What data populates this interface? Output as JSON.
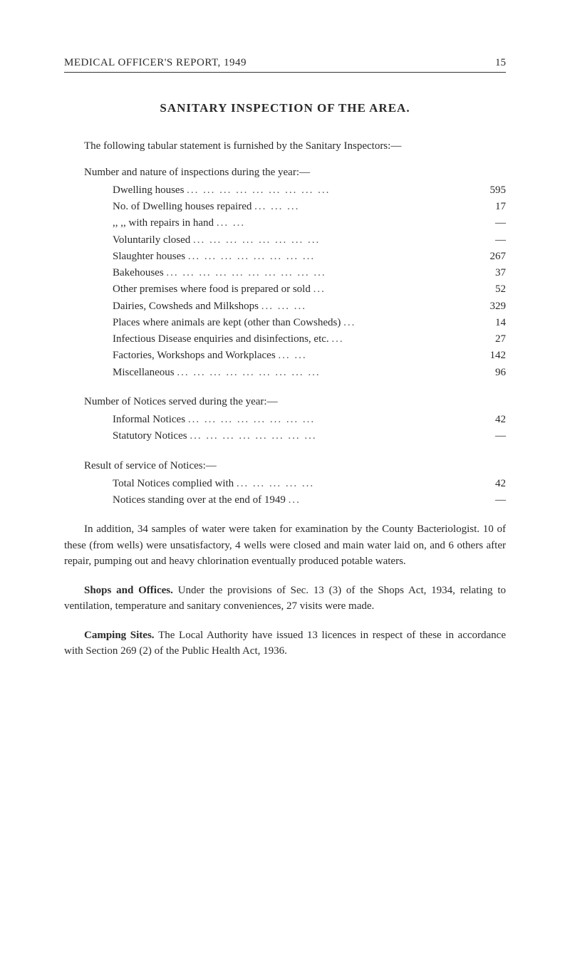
{
  "header": {
    "title": "MEDICAL OFFICER'S REPORT, 1949",
    "page_number": "15"
  },
  "main_title": "SANITARY INSPECTION OF THE AREA.",
  "intro": "The following tabular statement is furnished by the Sanitary Inspectors:—",
  "sections": [
    {
      "heading": "Number and nature of inspections during the year:—",
      "items": [
        {
          "label": "Dwelling houses",
          "value": "595"
        },
        {
          "label": "No. of Dwelling houses repaired",
          "value": "17"
        },
        {
          "label": ",,          ,,  with repairs in hand",
          "value": "—"
        },
        {
          "label": "Voluntarily closed",
          "value": "—"
        },
        {
          "label": "Slaughter houses",
          "value": "267"
        },
        {
          "label": "Bakehouses",
          "value": "37"
        },
        {
          "label": "Other premises where food is prepared or sold",
          "value": "52"
        },
        {
          "label": "Dairies, Cowsheds and Milkshops",
          "value": "329"
        },
        {
          "label": "Places where animals are kept (other than Cowsheds)",
          "value": "14"
        },
        {
          "label": "Infectious Disease enquiries and disinfections, etc.",
          "value": "27"
        },
        {
          "label": "Factories, Workshops and Workplaces",
          "value": "142"
        },
        {
          "label": "Miscellaneous",
          "value": "96"
        }
      ]
    },
    {
      "heading": "Number of Notices served during the year:—",
      "items": [
        {
          "label": "Informal Notices",
          "value": "42"
        },
        {
          "label": "Statutory Notices",
          "value": "—"
        }
      ]
    },
    {
      "heading": "Result of service of Notices:—",
      "items": [
        {
          "label": "Total Notices complied with",
          "value": "42"
        },
        {
          "label": "Notices standing over at the end of 1949",
          "value": "—"
        }
      ]
    }
  ],
  "paragraphs": [
    {
      "title": "",
      "text": "In addition, 34 samples of water were taken for examination by the County Bacteriologist. 10 of these (from wells) were unsatisfactory, 4 wells were closed and main water laid on, and 6 others after repair, pumping out and heavy chlorination eventually produced potable waters."
    },
    {
      "title": "Shops and Offices.",
      "text": "Under the provisions of Sec. 13 (3) of the Shops Act, 1934, relating to ventilation, temperature and sanitary conveniences, 27 visits were made."
    },
    {
      "title": "Camping Sites.",
      "text": "The Local Authority have issued 13 licences in respect of these in accordance with Section 269 (2) of the Public Health Act, 1936."
    }
  ]
}
